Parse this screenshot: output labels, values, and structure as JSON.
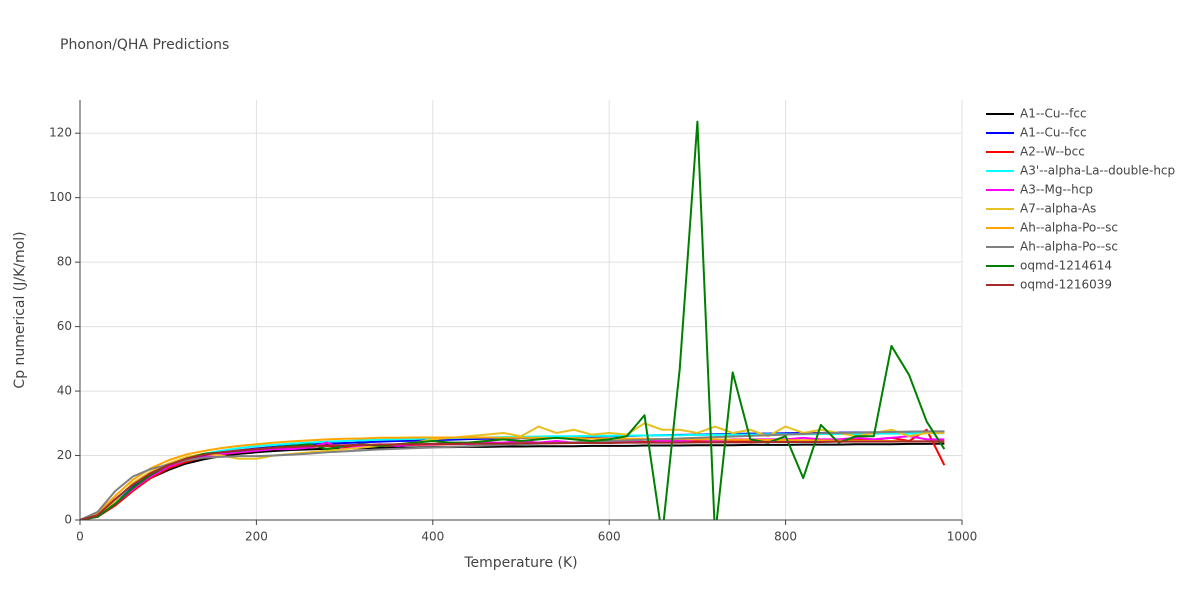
{
  "chart_data": {
    "type": "line",
    "title": "Phonon/QHA Predictions",
    "x_label": "Temperature (K)",
    "y_label": "Cp numerical (J/K/mol)",
    "x": [
      0,
      20,
      40,
      60,
      80,
      100,
      120,
      140,
      160,
      180,
      200,
      220,
      240,
      260,
      280,
      300,
      320,
      340,
      360,
      380,
      400,
      420,
      440,
      460,
      480,
      500,
      520,
      540,
      560,
      580,
      600,
      620,
      640,
      660,
      680,
      700,
      720,
      740,
      760,
      780,
      800,
      820,
      840,
      860,
      880,
      900,
      920,
      940,
      960,
      980
    ],
    "xlim": [
      0,
      1000
    ],
    "xticks": [
      0,
      200,
      400,
      600,
      800,
      1000
    ],
    "ylim": [
      0,
      130.3
    ],
    "yticks": [
      0,
      20,
      40,
      60,
      80,
      100,
      120
    ],
    "grid": true,
    "legend": "right",
    "series": [
      {
        "name": "A1--Cu--fcc",
        "color": "#000000",
        "values": [
          0,
          1.2,
          5,
          9.5,
          13,
          15.5,
          17.5,
          18.8,
          19.8,
          20.5,
          21,
          21.4,
          21.7,
          21.9,
          22.1,
          22.2,
          22.3,
          22.4,
          22.5,
          22.5,
          22.6,
          22.6,
          22.7,
          22.7,
          22.8,
          22.8,
          22.9,
          22.9,
          22.9,
          23,
          23,
          23,
          23.1,
          23.1,
          23.1,
          23.2,
          23.2,
          23.2,
          23.3,
          23.3,
          23.3,
          23.4,
          23.4,
          23.4,
          23.5,
          23.5,
          23.5,
          23.6,
          23.6,
          23.7
        ]
      },
      {
        "name": "A1--Cu--fcc",
        "color": "#0000ff",
        "values": [
          0,
          1.5,
          6,
          10.5,
          14,
          16.5,
          18.5,
          19.8,
          20.8,
          21.6,
          22.2,
          22.7,
          23.1,
          23.4,
          23.7,
          23.9,
          24.1,
          24.3,
          24.5,
          24.6,
          24.8,
          24.9,
          25.1,
          25.2,
          25.3,
          25.4,
          25.6,
          25.7,
          25.8,
          25.9,
          26,
          26.1,
          26.2,
          26.3,
          26.4,
          26.5,
          26.6,
          26.7,
          26.8,
          26.8,
          26.9,
          27,
          27,
          27.1,
          27.2,
          27.2,
          27.3,
          27.3,
          27.4,
          27.4
        ]
      },
      {
        "name": "A2--W--bcc",
        "color": "#ff0000",
        "values": [
          0,
          1,
          4.5,
          9,
          13,
          16,
          18,
          19.5,
          20.3,
          21,
          21.5,
          22,
          22.3,
          22.6,
          23,
          22.5,
          22.8,
          23,
          23.2,
          23.3,
          23.4,
          23.5,
          23.6,
          23.7,
          23.8,
          23.8,
          23.9,
          24,
          24,
          24.1,
          24.1,
          24.2,
          24.2,
          24.3,
          24.3,
          24.4,
          24.4,
          24.5,
          24.5,
          24.6,
          24.6,
          24.7,
          24.7,
          24.8,
          24.8,
          24.9,
          25.5,
          24.5,
          28,
          17
        ]
      },
      {
        "name": "A3'--alpha-La--double-hcp",
        "color": "#00ffff",
        "values": [
          0,
          1.5,
          6,
          11,
          14.5,
          17,
          19,
          20.5,
          21.5,
          22.3,
          22.9,
          23.3,
          23.7,
          24,
          24.3,
          24.5,
          24.7,
          24.9,
          25,
          25.2,
          25.3,
          25.4,
          25.5,
          25.6,
          25.7,
          25.8,
          25.9,
          26,
          26,
          26.1,
          26.1,
          26.2,
          26.2,
          26.3,
          26.3,
          26.4,
          26.4,
          26.5,
          26.5,
          26.6,
          26.6,
          26.6,
          26.7,
          26.7,
          26.7,
          26.8,
          26.8,
          26.8,
          26.9,
          26.9
        ]
      },
      {
        "name": "A3--Mg--hcp",
        "color": "#ff00ff",
        "values": [
          0,
          1,
          5,
          9.5,
          13.5,
          16.5,
          18.5,
          19.5,
          20.5,
          21,
          21.5,
          22,
          22,
          22.5,
          24,
          22,
          23,
          23.5,
          23,
          23.5,
          23.5,
          24,
          23.5,
          24,
          24,
          24.5,
          24,
          24.5,
          24,
          24.5,
          24.5,
          24,
          25,
          24.5,
          24.5,
          25,
          24.5,
          25,
          25,
          25,
          25,
          25.5,
          25,
          25,
          25.5,
          25,
          25.5,
          26,
          25,
          25
        ]
      },
      {
        "name": "A7--alpha-As",
        "color": "#e8c020",
        "values": [
          0,
          1.5,
          6,
          11.5,
          15,
          17.5,
          19.5,
          20.5,
          20,
          19,
          19,
          20,
          20.5,
          21,
          21.5,
          22,
          22.5,
          23,
          23.5,
          24,
          25,
          25.5,
          26,
          26.5,
          27,
          26,
          29,
          27,
          28,
          26.5,
          27,
          26.5,
          30,
          28,
          28,
          27,
          29,
          27,
          28,
          26,
          29,
          27,
          28,
          27,
          26,
          27,
          28,
          26,
          27,
          27
        ]
      },
      {
        "name": "Ah--alpha-Po--sc",
        "color": "#ffa500",
        "values": [
          0,
          2,
          7.5,
          12.5,
          16,
          18.5,
          20.3,
          21.4,
          22.3,
          23,
          23.5,
          24,
          24.4,
          24.7,
          25,
          25.2,
          25.3,
          25.5,
          25.5,
          25.6,
          25.6,
          25.6,
          25.6,
          25.6,
          25.5,
          25.5,
          25.5,
          25.4,
          25.4,
          25.3,
          25.3,
          25.2,
          25.2,
          25.1,
          25.1,
          25,
          25,
          24.9,
          24.9,
          24.8,
          24.8,
          24.7,
          24.7,
          24.6,
          24.6,
          24.5,
          24.5,
          24.4,
          24.4,
          24.3
        ]
      },
      {
        "name": "Ah--alpha-Po--sc",
        "color": "#808080",
        "values": [
          0,
          2.5,
          9,
          13.5,
          15.8,
          17.2,
          18.5,
          19.3,
          19.6,
          19.8,
          19.8,
          20,
          20.3,
          20.6,
          21,
          21.3,
          21.6,
          21.9,
          22.1,
          22.3,
          22.5,
          22.7,
          22.9,
          23.1,
          23.3,
          23.5,
          23.7,
          23.9,
          24.1,
          24.3,
          24.5,
          24.7,
          24.9,
          25.1,
          25.3,
          25.5,
          25.7,
          25.9,
          26.1,
          26.3,
          26.5,
          26.7,
          26.9,
          27,
          27.1,
          27.2,
          27.3,
          27.4,
          27.5,
          27.5
        ]
      },
      {
        "name": "oqmd-1214614",
        "color": "#008000",
        "values": [
          0,
          1,
          5,
          10,
          14,
          17,
          19,
          20.5,
          21,
          21.5,
          22,
          22.5,
          23,
          23.5,
          22,
          23,
          23.5,
          23,
          23.5,
          24,
          24.5,
          24,
          24,
          24.5,
          25,
          24.5,
          25,
          25.5,
          25,
          24.5,
          25,
          26,
          32.5,
          -5,
          47,
          123.6,
          -5,
          45.8,
          25,
          24,
          26,
          13,
          29.5,
          24,
          26,
          26,
          54,
          45,
          30.5,
          22
        ]
      },
      {
        "name": "oqmd-1216039",
        "color": "#a52a2a",
        "values": [
          0,
          1.5,
          6.5,
          11,
          14.5,
          17,
          19,
          20.2,
          21,
          21.6,
          22,
          22.4,
          22.7,
          22.9,
          23.1,
          23.2,
          23.3,
          23.4,
          23.5,
          23.5,
          23.6,
          23.6,
          23.7,
          23.7,
          23.7,
          23.8,
          23.8,
          23.8,
          23.9,
          23.9,
          23.9,
          24,
          24,
          24,
          24,
          24.1,
          24.1,
          24.1,
          24.1,
          24.2,
          24.2,
          24.2,
          24.2,
          24.3,
          24.3,
          24.3,
          24.3,
          24.4,
          24.4,
          24.4
        ]
      }
    ]
  }
}
